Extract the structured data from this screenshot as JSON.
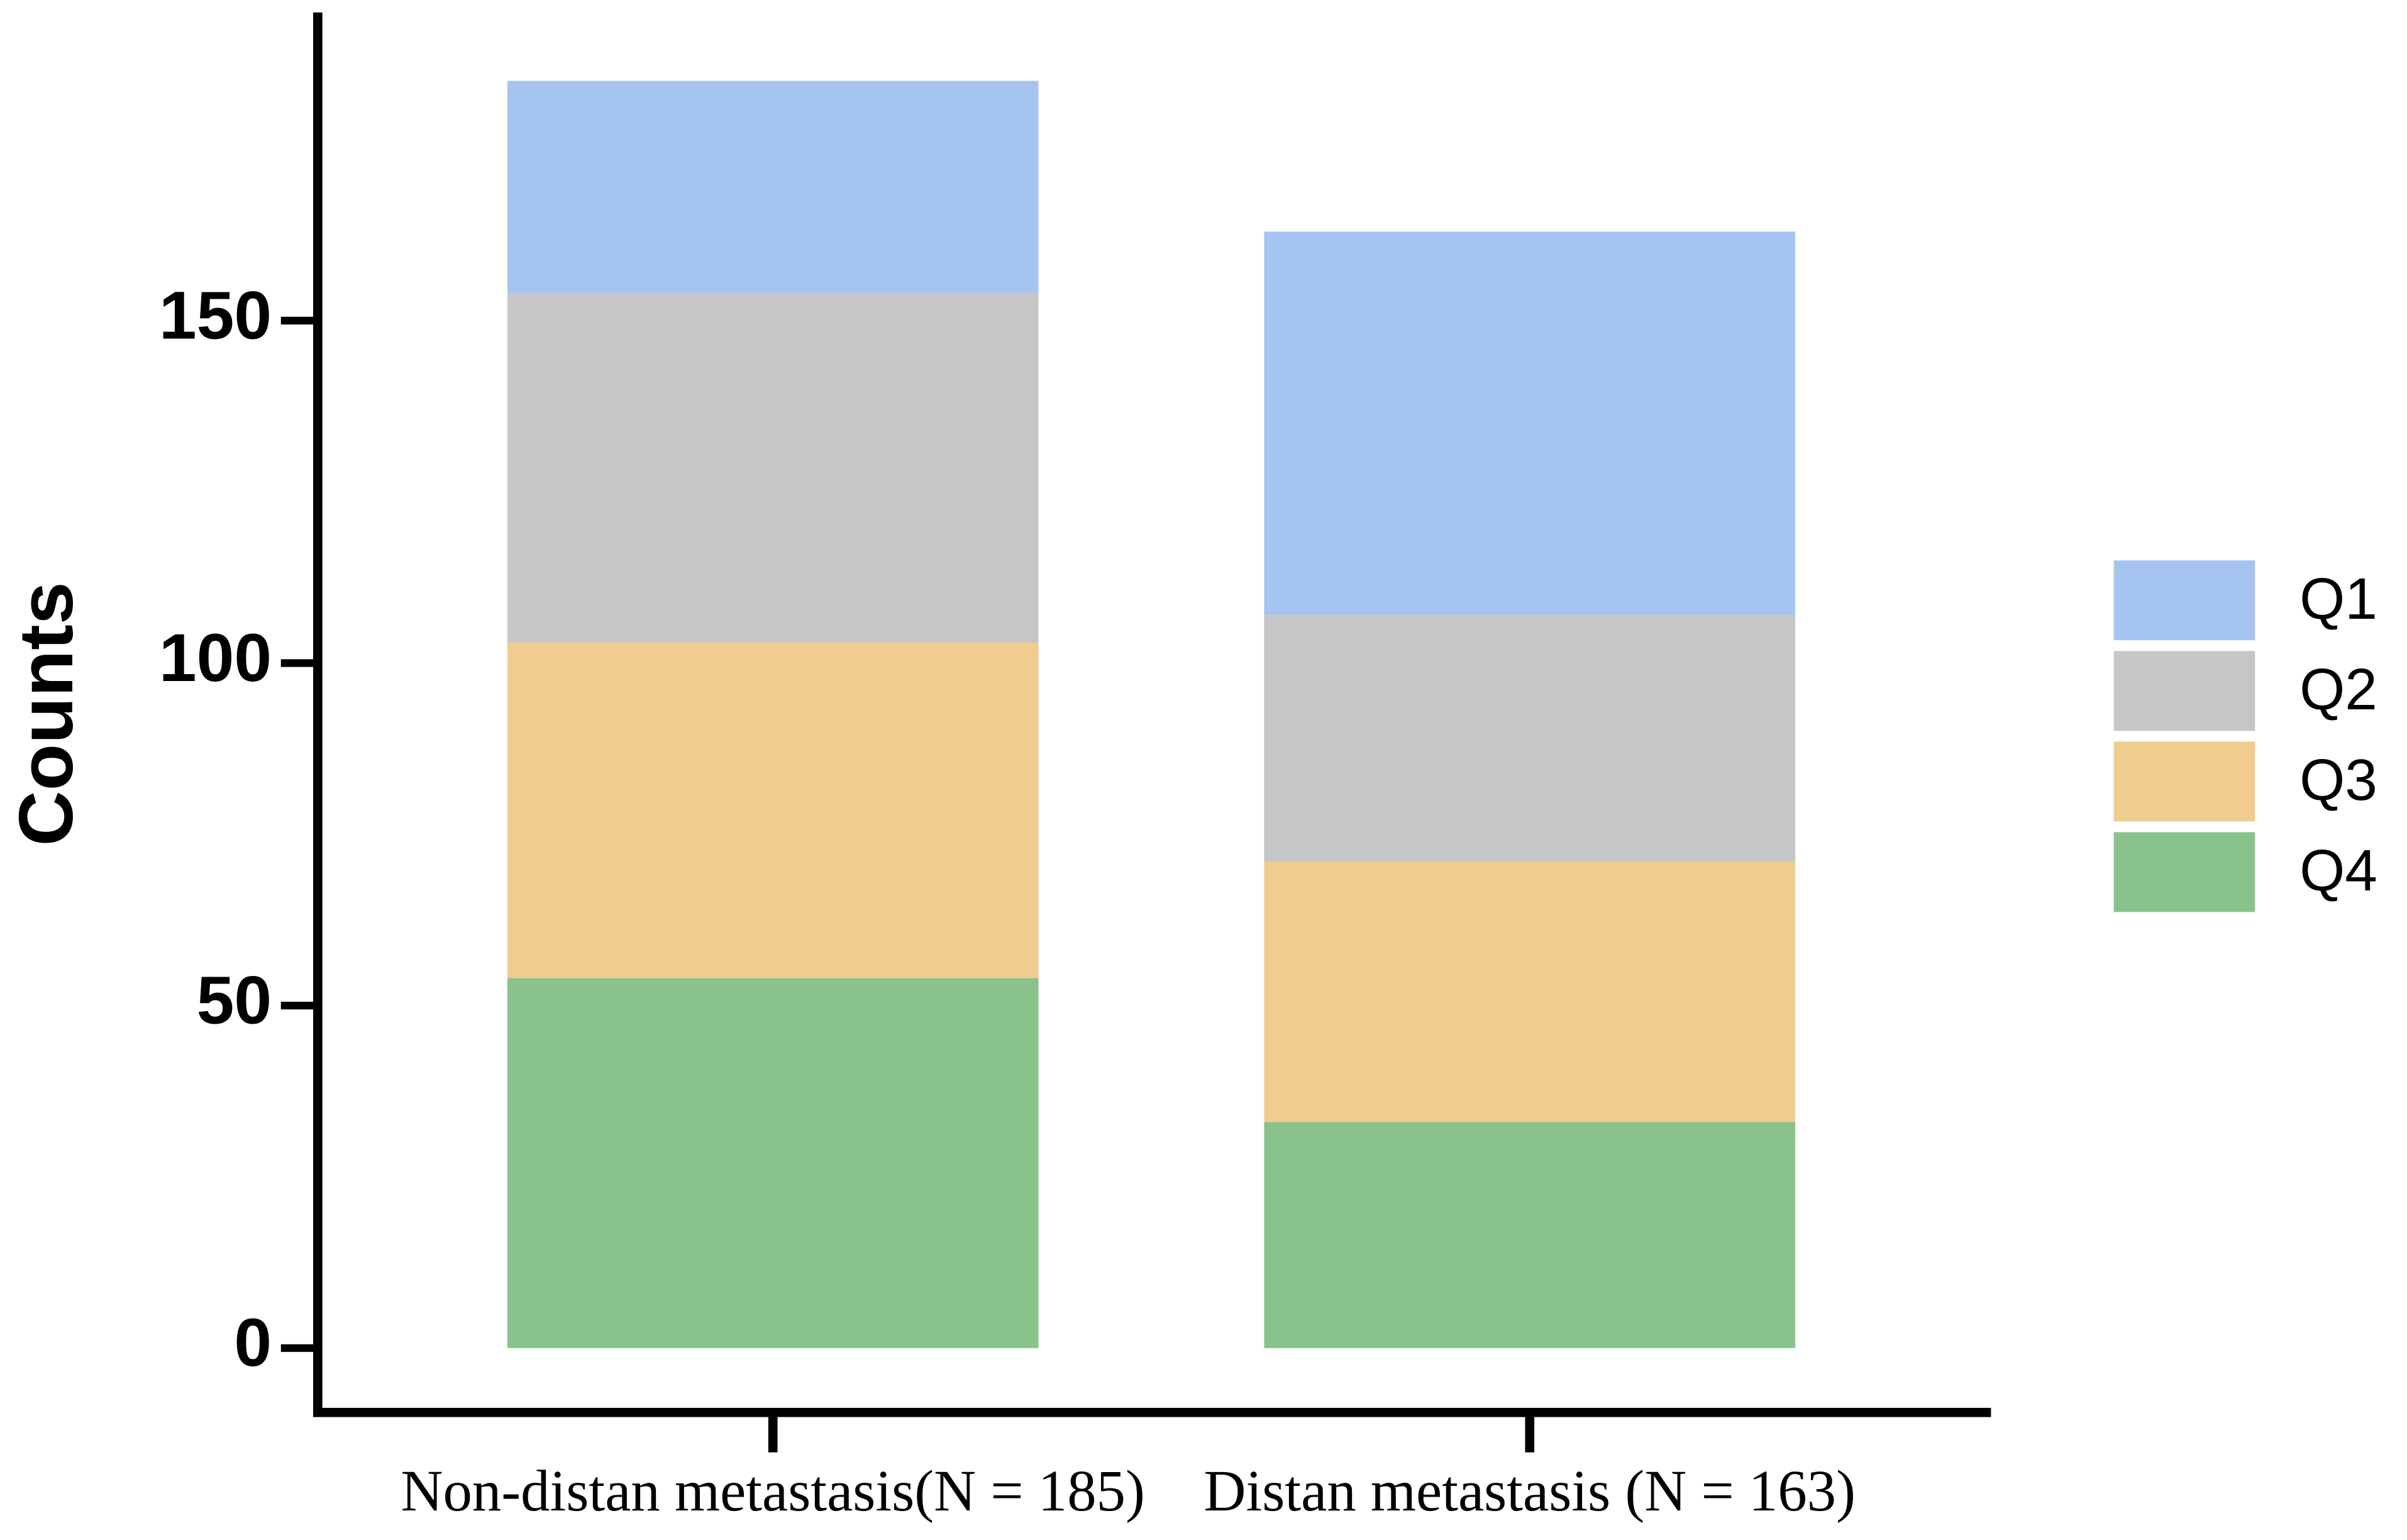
{
  "chart_data": {
    "type": "stacked_bar",
    "y_label": "Counts",
    "categories": [
      "Non-distan metastasis(N = 185)",
      "Distan metastasis (N = 163)"
    ],
    "series": [
      {
        "name": "Q1",
        "color": "#a6c4f0",
        "values": [
          31,
          56
        ]
      },
      {
        "name": "Q2",
        "color": "#c6c6c6",
        "values": [
          51,
          36
        ]
      },
      {
        "name": "Q3",
        "color": "#f0cc8e",
        "values": [
          49,
          38
        ]
      },
      {
        "name": "Q4",
        "color": "#89c38b",
        "values": [
          54,
          33
        ]
      }
    ],
    "ylim": [
      -9.4,
      195
    ],
    "yticks": [
      0,
      50,
      100,
      150
    ],
    "legend": "right"
  }
}
